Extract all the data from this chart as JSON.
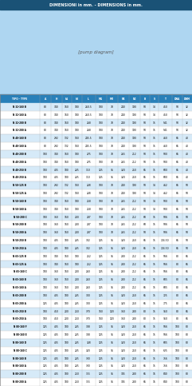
{
  "title": "DIMENSIONI in mm. - DIMENSIONS in mm.",
  "title_bg": "#1a5276",
  "header_bg": "#2980b9",
  "header_text_color": "#ffffff",
  "row_alt1": "#d6eaf8",
  "row_alt2": "#ffffff",
  "diagram_bg": "#aed6f1",
  "columns": [
    "TIPO - TYPE",
    "A",
    "H",
    "h1",
    "h2",
    "L",
    "M1",
    "M2",
    "N1",
    "N2",
    "B",
    "S",
    "T",
    "DNA",
    "DNM"
  ],
  "rows": [
    [
      "N 32-160 B",
      "80",
      "340",
      "160",
      "180",
      "260.5",
      "100",
      "70",
      "240",
      "190",
      "50",
      "14",
      "450",
      "50",
      "32"
    ],
    [
      "N 32-160 A",
      "80",
      "340",
      "160",
      "180",
      "260.5",
      "100",
      "70",
      "240",
      "190",
      "50",
      "14",
      "450",
      "50",
      "32"
    ],
    [
      "N 32-200 B",
      "80",
      "340",
      "160",
      "180",
      "268",
      "100",
      "70",
      "240",
      "190",
      "50",
      "15",
      "541",
      "50",
      "32"
    ],
    [
      "N 32-200 A",
      "80",
      "340",
      "160",
      "180",
      "268",
      "100",
      "70",
      "240",
      "190",
      "50",
      "15",
      "541",
      "50",
      "32"
    ],
    [
      "N 40-160 B",
      "80",
      "292",
      "132",
      "160",
      "245.5",
      "100",
      "70",
      "240",
      "190",
      "50",
      "15",
      "460",
      "65",
      "40"
    ],
    [
      "N 40-160 A",
      "80",
      "292",
      "132",
      "160",
      "245.5",
      "100",
      "70",
      "240",
      "190",
      "50",
      "15",
      "460",
      "65",
      "40"
    ],
    [
      "N 40-200 B",
      "100",
      "340",
      "160",
      "180",
      "275",
      "100",
      "70",
      "265",
      "212",
      "50",
      "15",
      "500",
      "65",
      "40"
    ],
    [
      "N 40-200 A",
      "100",
      "340",
      "160",
      "180",
      "275",
      "100",
      "70",
      "265",
      "212",
      "50",
      "15",
      "500",
      "65",
      "40"
    ],
    [
      "N 40-250 B",
      "100",
      "405",
      "180",
      "225",
      "310",
      "125",
      "95",
      "320",
      "250",
      "65",
      "15",
      "600",
      "65",
      "40"
    ],
    [
      "N 40-250 A",
      "100",
      "405",
      "180",
      "225",
      "310",
      "125",
      "95",
      "320",
      "250",
      "65",
      "15",
      "600",
      "65",
      "40"
    ],
    [
      "N 50-125 B",
      "100",
      "292",
      "132",
      "160",
      "228",
      "100",
      "70",
      "240",
      "190",
      "50",
      "14",
      "462",
      "65",
      "50"
    ],
    [
      "N 50-125 A",
      "100",
      "292",
      "132",
      "160",
      "228",
      "100",
      "70",
      "240",
      "190",
      "50",
      "14",
      "462",
      "65",
      "50"
    ],
    [
      "N 50-160 B",
      "100",
      "340",
      "160",
      "180",
      "258",
      "100",
      "70",
      "265",
      "212",
      "50",
      "14",
      "500",
      "65",
      "50"
    ],
    [
      "N 50-160 A",
      "100",
      "340",
      "160",
      "180",
      "258",
      "100",
      "70",
      "265",
      "212",
      "50",
      "14",
      "500",
      "65",
      "50"
    ],
    [
      "N 50-200 C",
      "100",
      "360",
      "160",
      "200",
      "287",
      "100",
      "70",
      "265",
      "212",
      "60",
      "15",
      "506",
      "65",
      "50"
    ],
    [
      "N 50-200 B",
      "100",
      "360",
      "160",
      "200",
      "287",
      "100",
      "70",
      "265",
      "212",
      "60",
      "15",
      "506",
      "65",
      "50"
    ],
    [
      "N 50-200 A",
      "100",
      "360",
      "160",
      "200",
      "287",
      "100",
      "70",
      "265",
      "212",
      "50",
      "15",
      "506",
      "65",
      "50"
    ],
    [
      "N 50-250 B",
      "100",
      "405",
      "180",
      "225",
      "302",
      "125",
      "95",
      "320",
      "250",
      "65",
      "15",
      "724.50",
      "65",
      "50"
    ],
    [
      "N 50-250 A",
      "100",
      "405",
      "180",
      "225",
      "302",
      "125",
      "95",
      "320",
      "250",
      "65",
      "15",
      "724.50",
      "65",
      "50"
    ],
    [
      "N 65-125 B",
      "100",
      "340",
      "160",
      "180",
      "252",
      "125",
      "95",
      "280",
      "212",
      "65",
      "15",
      "566",
      "80",
      "65"
    ],
    [
      "N 65-125 A",
      "100",
      "340",
      "160",
      "180",
      "252",
      "125",
      "95",
      "280",
      "212",
      "65",
      "15",
      "566",
      "80",
      "65"
    ],
    [
      "N 65-160 C",
      "100",
      "360",
      "160",
      "200",
      "260",
      "125",
      "95",
      "280",
      "212",
      "65",
      "15",
      "566",
      "80",
      "65"
    ],
    [
      "N 65-160 B",
      "100",
      "360",
      "160",
      "200",
      "260",
      "125",
      "95",
      "280",
      "212",
      "65",
      "15",
      "605",
      "80",
      "65"
    ],
    [
      "N 65-160 A",
      "100",
      "360",
      "160",
      "200",
      "260",
      "125",
      "95",
      "280",
      "212",
      "65",
      "15",
      "605",
      "80",
      "65"
    ],
    [
      "N 65-200 B",
      "100",
      "405",
      "180",
      "225",
      "300",
      "125",
      "95",
      "320",
      "250",
      "65",
      "15",
      "725",
      "80",
      "65"
    ],
    [
      "N 65-200 A",
      "125",
      "405",
      "180",
      "225",
      "300",
      "125",
      "95",
      "320",
      "250",
      "65",
      "15",
      "775",
      "80",
      "65"
    ],
    [
      "N 65-250 B",
      "100",
      "450",
      "200",
      "250",
      "370",
      "160",
      "120",
      "360",
      "280",
      "80",
      "15",
      "950",
      "80",
      "65"
    ],
    [
      "N 65-250 A",
      "100",
      "450",
      "200",
      "250",
      "370",
      "160",
      "120",
      "360",
      "280",
      "80",
      "15",
      "950",
      "80",
      "65"
    ],
    [
      "N 80-160 F",
      "125",
      "405",
      "180",
      "225",
      "308",
      "125",
      "95",
      "320",
      "250",
      "65",
      "15",
      "566",
      "100",
      "80"
    ],
    [
      "N 80-160 E",
      "125",
      "405",
      "180",
      "225",
      "308",
      "125",
      "95",
      "320",
      "250",
      "65",
      "15",
      "566",
      "100",
      "80"
    ],
    [
      "N 80-160 D",
      "125",
      "405",
      "180",
      "225",
      "328",
      "125",
      "95",
      "320",
      "250",
      "65",
      "15",
      "605",
      "100",
      "80"
    ],
    [
      "N 80-160 C",
      "125",
      "405",
      "180",
      "225",
      "320",
      "125",
      "95",
      "320",
      "250",
      "65",
      "15",
      "625",
      "100",
      "80"
    ],
    [
      "N 80-160 B",
      "125",
      "405",
      "180",
      "225",
      "330",
      "125",
      "95",
      "320",
      "250",
      "65",
      "15",
      "756",
      "100",
      "80"
    ],
    [
      "N 80-160 A",
      "125",
      "405",
      "180",
      "225",
      "330",
      "125",
      "95",
      "320",
      "250",
      "65",
      "15",
      "756",
      "100",
      "80"
    ],
    [
      "N 80-200 B",
      "125",
      "405",
      "180",
      "250",
      "355",
      "125",
      "95",
      "345",
      "280",
      "65",
      "16",
      "840",
      "100",
      "80"
    ],
    [
      "N 80-200 A",
      "125",
      "405",
      "180",
      "250",
      "355",
      "125",
      "95",
      "345",
      "280",
      "65",
      "16",
      "840",
      "100",
      "80"
    ]
  ]
}
